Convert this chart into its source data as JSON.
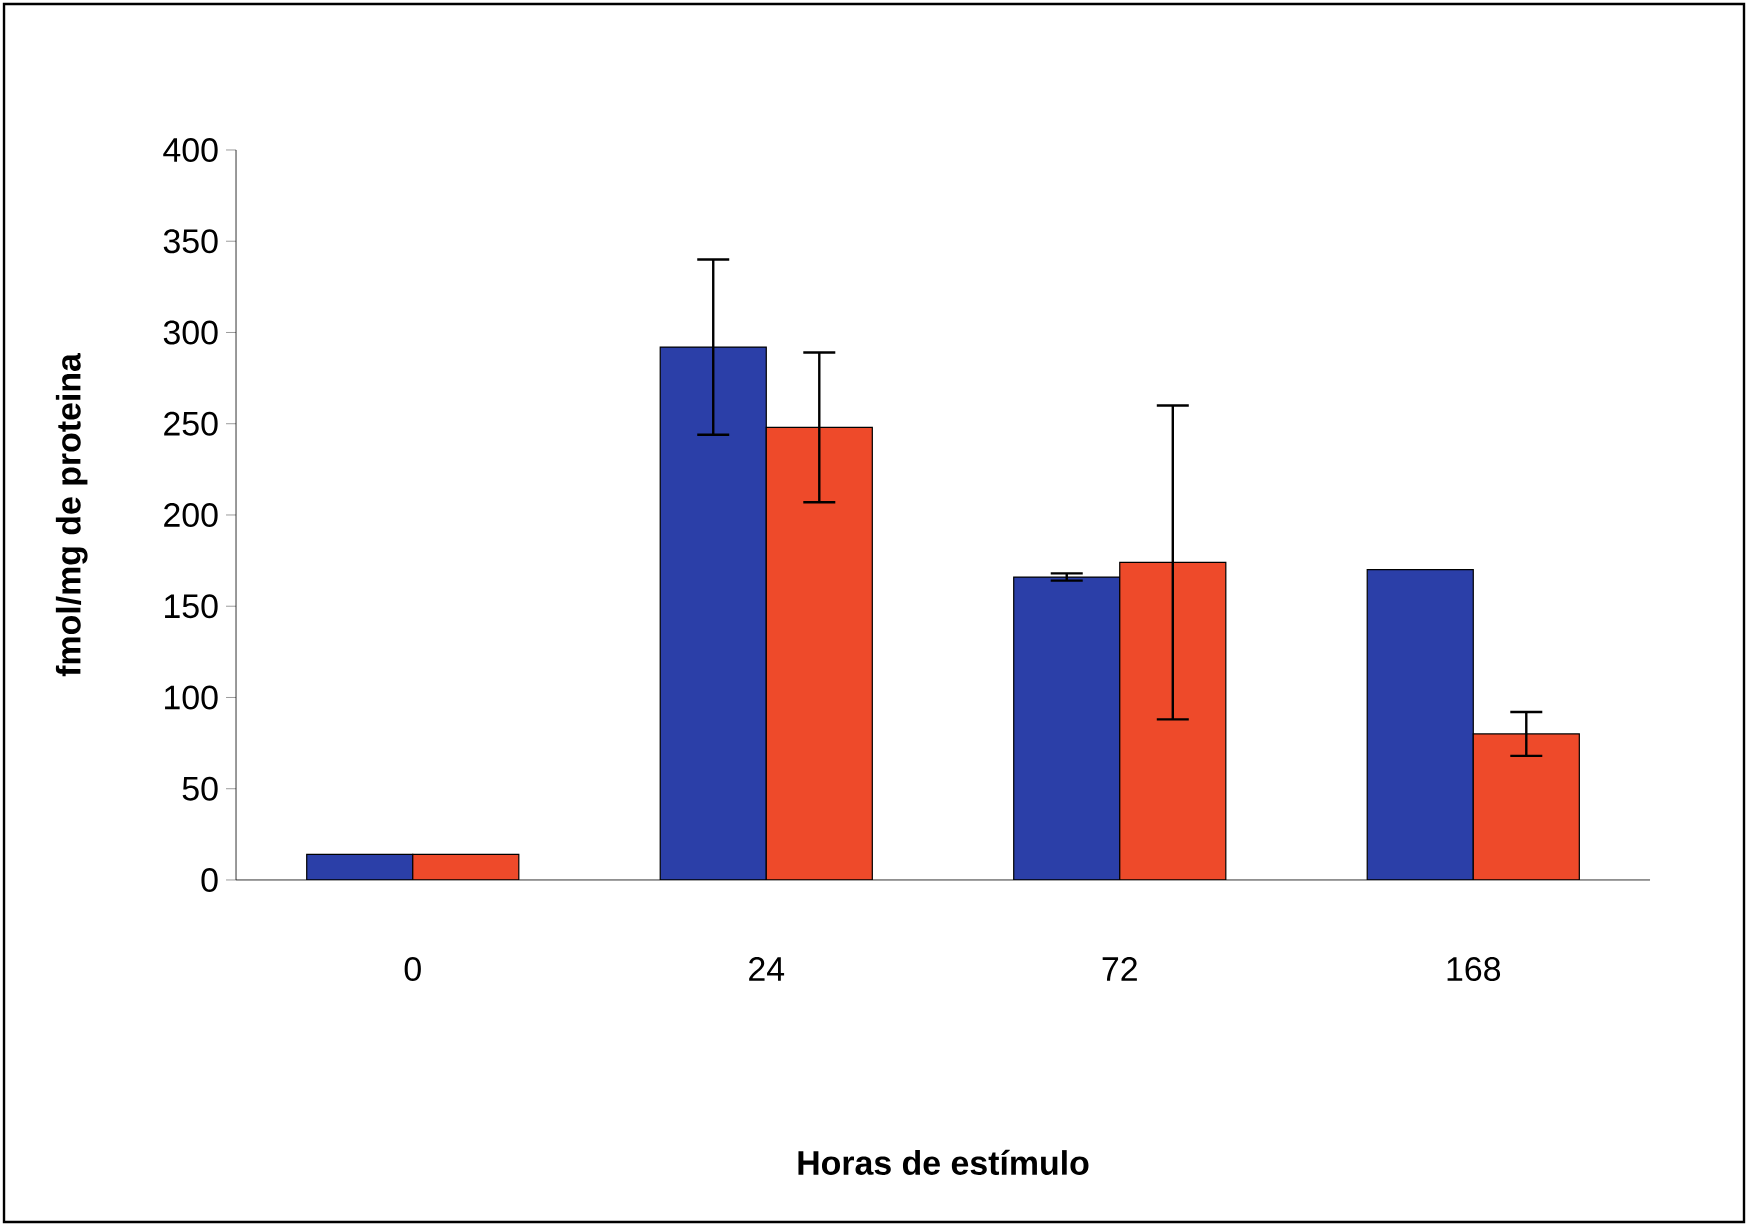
{
  "chart_data": {
    "type": "bar",
    "xlabel": "Horas de estímulo",
    "ylabel": "fmol/mg de proteina",
    "categories": [
      "0",
      "24",
      "72",
      "168"
    ],
    "series": [
      {
        "color": "#2b3fa8",
        "values": [
          14,
          292,
          166,
          170
        ],
        "errors": [
          null,
          48,
          2,
          null
        ]
      },
      {
        "color": "#ee4a2a",
        "values": [
          14,
          248,
          174,
          80
        ],
        "errors": [
          null,
          41,
          86,
          12
        ]
      }
    ],
    "ylim": [
      0,
      400
    ],
    "yticks": [
      0,
      50,
      100,
      150,
      200,
      250,
      300,
      350,
      400
    ]
  }
}
